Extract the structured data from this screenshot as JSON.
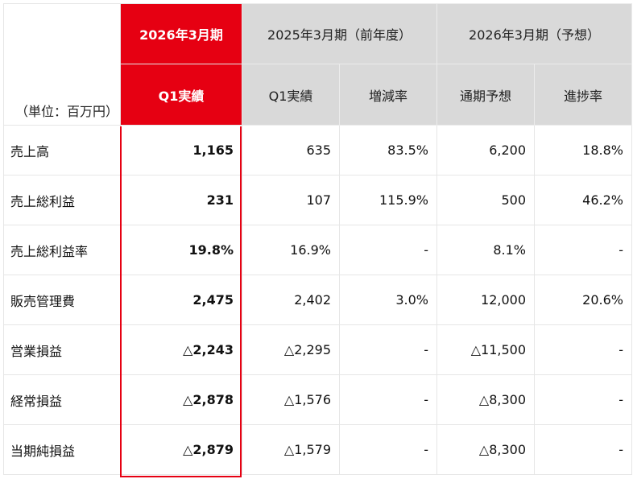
{
  "header": {
    "unit_label": "（単位：百万円）",
    "col_current_period": "2026年3月期",
    "col_prior_period": "2025年3月期（前年度）",
    "col_forecast_period": "2026年3月期（予想）",
    "sub_current_q1": "Q1実績",
    "sub_prior_q1": "Q1実績",
    "sub_change_rate": "増減率",
    "sub_full_year_forecast": "通期予想",
    "sub_progress_rate": "進捗率"
  },
  "rows": [
    {
      "label": "売上高",
      "current": "1,165",
      "prior": "635",
      "change": "83.5%",
      "forecast": "6,200",
      "progress": "18.8%"
    },
    {
      "label": "売上総利益",
      "current": "231",
      "prior": "107",
      "change": "115.9%",
      "forecast": "500",
      "progress": "46.2%"
    },
    {
      "label": "売上総利益率",
      "current": "19.8%",
      "prior": "16.9%",
      "change": "-",
      "forecast": "8.1%",
      "progress": "-"
    },
    {
      "label": "販売管理費",
      "current": "2,475",
      "prior": "2,402",
      "change": "3.0%",
      "forecast": "12,000",
      "progress": "20.6%"
    },
    {
      "label": "営業損益",
      "current": "△2,243",
      "prior": "△2,295",
      "change": "-",
      "forecast": "△11,500",
      "progress": "-"
    },
    {
      "label": "経常損益",
      "current": "△2,878",
      "prior": "△1,576",
      "change": "-",
      "forecast": "△8,300",
      "progress": "-"
    },
    {
      "label": "当期純損益",
      "current": "△2,879",
      "prior": "△1,579",
      "change": "-",
      "forecast": "△8,300",
      "progress": "-"
    }
  ],
  "colors": {
    "accent_red": "#e60012",
    "header_grey": "#d9d9d9",
    "border": "#e6e6e6"
  }
}
